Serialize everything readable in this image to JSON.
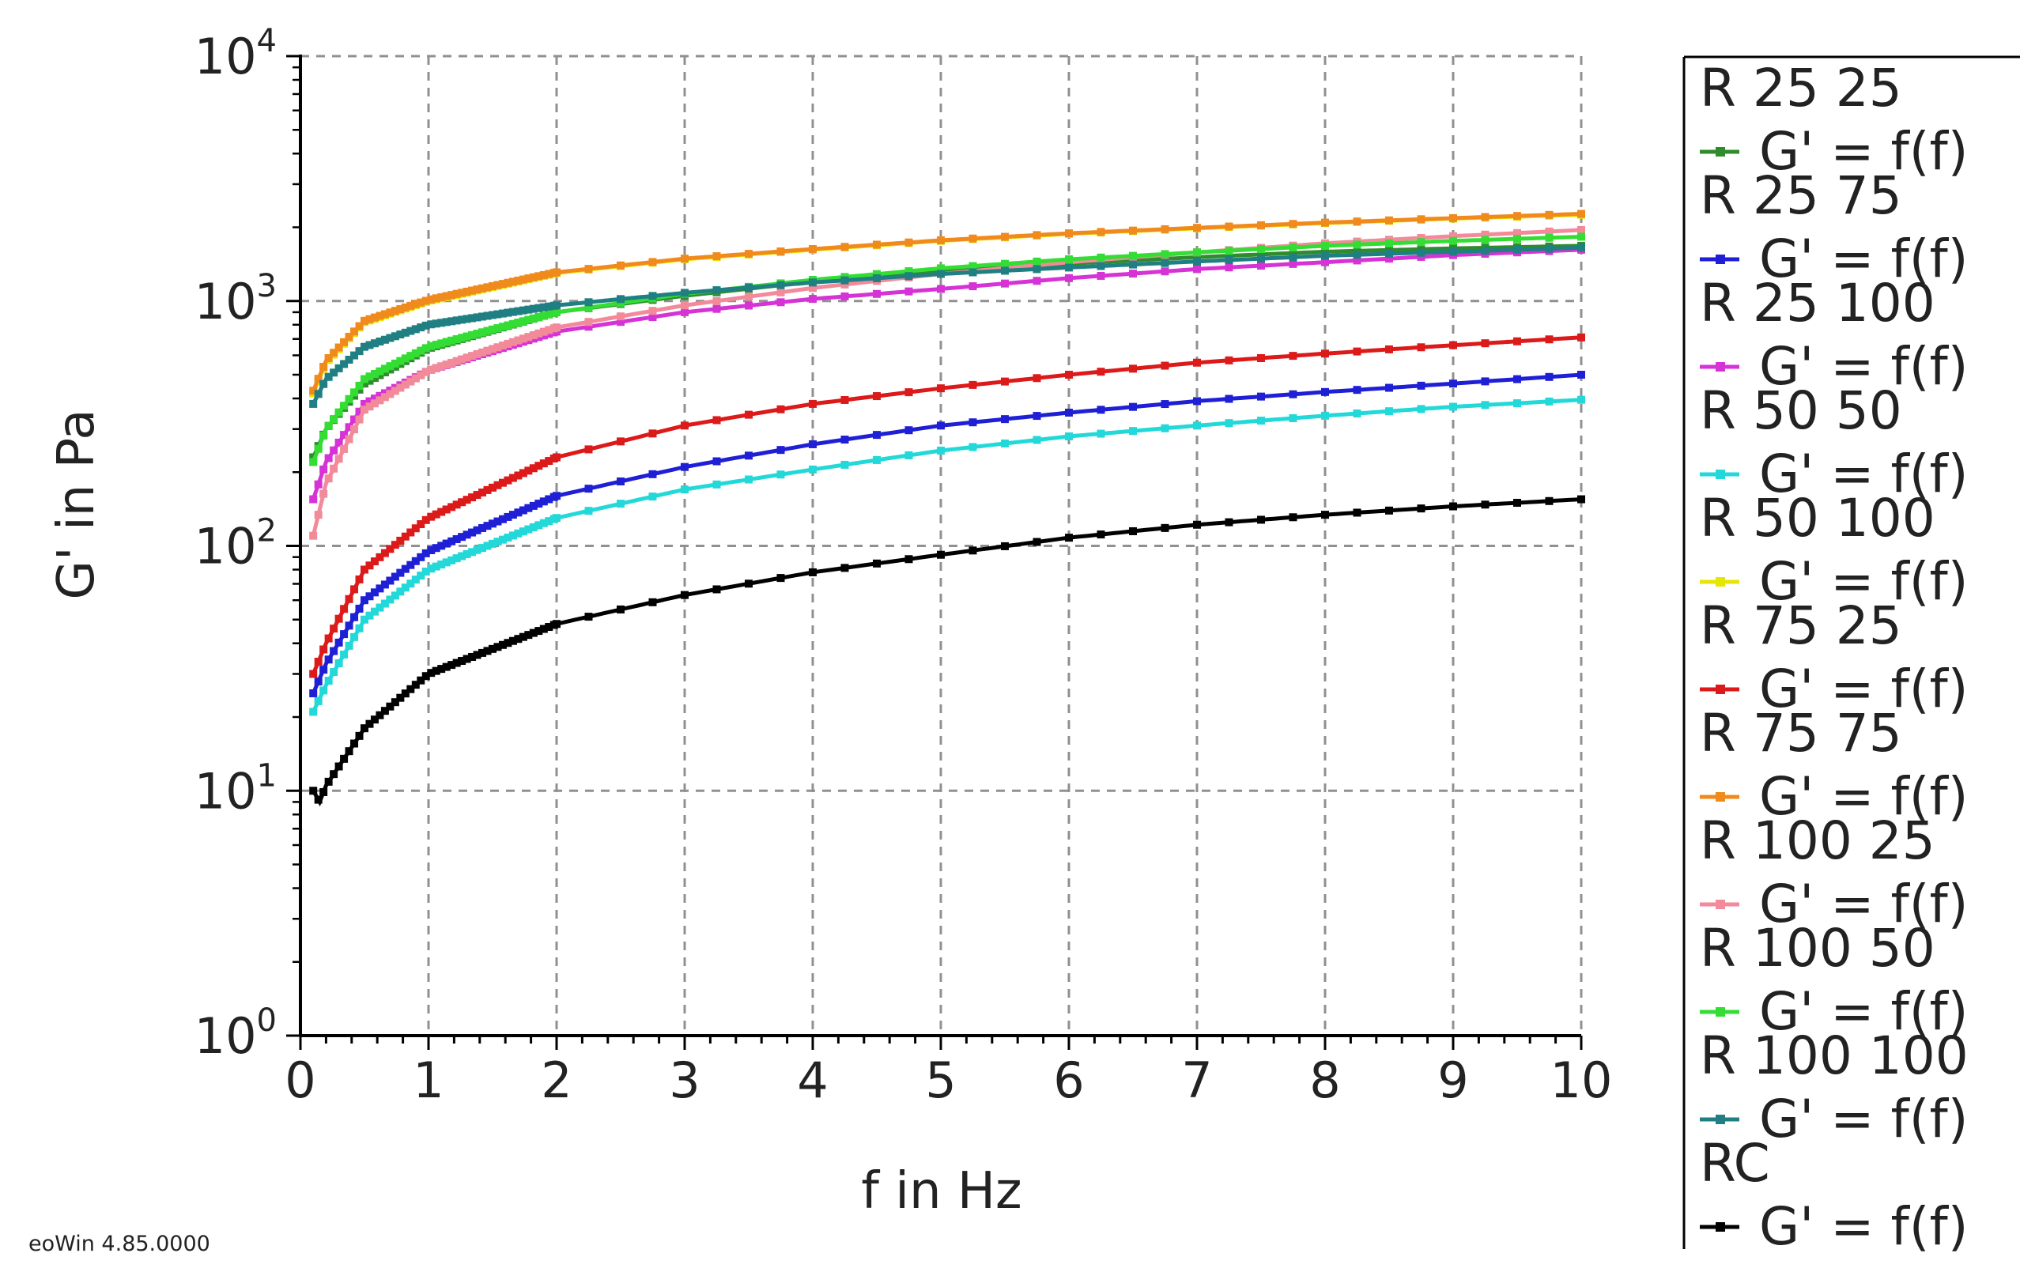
{
  "chart_data": {
    "type": "line",
    "title": "",
    "xlabel": "f in Hz",
    "ylabel": "G' in Pa",
    "xlim": [
      0,
      10
    ],
    "ylim": [
      1,
      10000
    ],
    "yscale": "log",
    "grid": true,
    "x_ticks": [
      "0",
      "1",
      "2",
      "3",
      "4",
      "5",
      "6",
      "7",
      "8",
      "9",
      "10"
    ],
    "y_ticks": [
      {
        "base": "10",
        "exp": "0"
      },
      {
        "base": "10",
        "exp": "1"
      },
      {
        "base": "10",
        "exp": "2"
      },
      {
        "base": "10",
        "exp": "3"
      },
      {
        "base": "10",
        "exp": "4"
      }
    ],
    "legend_position": "right",
    "series": [
      {
        "name": "R 25 25",
        "label": "G' = f(f)",
        "color": "#2e8b2e",
        "points": [
          [
            0.1,
            230
          ],
          [
            0.2,
            300
          ],
          [
            0.5,
            460
          ],
          [
            1,
            640
          ],
          [
            2,
            900
          ],
          [
            3,
            1050
          ],
          [
            4,
            1200
          ],
          [
            5,
            1320
          ],
          [
            6,
            1420
          ],
          [
            7,
            1510
          ],
          [
            8,
            1590
          ],
          [
            9,
            1640
          ],
          [
            10,
            1680
          ]
        ]
      },
      {
        "name": "R 25 75",
        "label": "G' = f(f)",
        "color": "#1f1fd6",
        "points": [
          [
            0.1,
            25
          ],
          [
            0.2,
            33
          ],
          [
            0.5,
            60
          ],
          [
            1,
            95
          ],
          [
            2,
            160
          ],
          [
            3,
            210
          ],
          [
            4,
            260
          ],
          [
            5,
            310
          ],
          [
            6,
            350
          ],
          [
            7,
            390
          ],
          [
            8,
            425
          ],
          [
            9,
            460
          ],
          [
            10,
            500
          ]
        ]
      },
      {
        "name": "R 25 100",
        "label": "G' = f(f)",
        "color": "#d633d6",
        "points": [
          [
            0.1,
            155
          ],
          [
            0.2,
            220
          ],
          [
            0.5,
            380
          ],
          [
            1,
            520
          ],
          [
            2,
            750
          ],
          [
            3,
            900
          ],
          [
            4,
            1020
          ],
          [
            5,
            1120
          ],
          [
            6,
            1240
          ],
          [
            7,
            1350
          ],
          [
            8,
            1440
          ],
          [
            9,
            1540
          ],
          [
            10,
            1620
          ]
        ]
      },
      {
        "name": "R 50 50",
        "label": "G' = f(f)",
        "color": "#22d8d8",
        "points": [
          [
            0.1,
            21
          ],
          [
            0.2,
            27
          ],
          [
            0.5,
            50
          ],
          [
            1,
            80
          ],
          [
            2,
            130
          ],
          [
            3,
            170
          ],
          [
            4,
            205
          ],
          [
            5,
            245
          ],
          [
            6,
            280
          ],
          [
            7,
            310
          ],
          [
            8,
            340
          ],
          [
            9,
            370
          ],
          [
            10,
            395
          ]
        ]
      },
      {
        "name": "R 50 100",
        "label": "G' = f(f)",
        "color": "#e6e600",
        "points": [
          [
            0.1,
            420
          ],
          [
            0.2,
            560
          ],
          [
            0.5,
            820
          ],
          [
            1,
            1000
          ],
          [
            2,
            1300
          ],
          [
            3,
            1480
          ],
          [
            4,
            1620
          ],
          [
            5,
            1760
          ],
          [
            6,
            1880
          ],
          [
            7,
            1980
          ],
          [
            8,
            2080
          ],
          [
            9,
            2170
          ],
          [
            10,
            2250
          ]
        ]
      },
      {
        "name": "R 75 25",
        "label": "G' = f(f)",
        "color": "#dd1a1a",
        "points": [
          [
            0.1,
            30
          ],
          [
            0.2,
            40
          ],
          [
            0.5,
            80
          ],
          [
            1,
            130
          ],
          [
            2,
            230
          ],
          [
            3,
            310
          ],
          [
            4,
            380
          ],
          [
            5,
            440
          ],
          [
            6,
            500
          ],
          [
            7,
            560
          ],
          [
            8,
            610
          ],
          [
            9,
            660
          ],
          [
            10,
            710
          ]
        ]
      },
      {
        "name": "R 75 75",
        "label": "G' = f(f)",
        "color": "#f08a1c",
        "points": [
          [
            0.1,
            430
          ],
          [
            0.2,
            570
          ],
          [
            0.5,
            830
          ],
          [
            1,
            1010
          ],
          [
            2,
            1310
          ],
          [
            3,
            1490
          ],
          [
            4,
            1630
          ],
          [
            5,
            1770
          ],
          [
            6,
            1890
          ],
          [
            7,
            1990
          ],
          [
            8,
            2090
          ],
          [
            9,
            2180
          ],
          [
            10,
            2270
          ]
        ]
      },
      {
        "name": "R 100 25",
        "label": "G' = f(f)",
        "color": "#f28a9a",
        "points": [
          [
            0.1,
            110
          ],
          [
            0.2,
            180
          ],
          [
            0.5,
            360
          ],
          [
            1,
            520
          ],
          [
            2,
            780
          ],
          [
            3,
            960
          ],
          [
            4,
            1130
          ],
          [
            5,
            1290
          ],
          [
            6,
            1440
          ],
          [
            7,
            1580
          ],
          [
            8,
            1720
          ],
          [
            9,
            1840
          ],
          [
            10,
            1950
          ]
        ]
      },
      {
        "name": "R 100 50",
        "label": "G' = f(f)",
        "color": "#33dd33",
        "points": [
          [
            0.1,
            220
          ],
          [
            0.2,
            300
          ],
          [
            0.5,
            480
          ],
          [
            1,
            650
          ],
          [
            2,
            900
          ],
          [
            3,
            1070
          ],
          [
            4,
            1220
          ],
          [
            5,
            1360
          ],
          [
            6,
            1480
          ],
          [
            7,
            1580
          ],
          [
            8,
            1680
          ],
          [
            9,
            1760
          ],
          [
            10,
            1830
          ]
        ]
      },
      {
        "name": "R 100 100",
        "label": "G' = f(f)",
        "color": "#1f7f82",
        "points": [
          [
            0.1,
            380
          ],
          [
            0.2,
            480
          ],
          [
            0.5,
            650
          ],
          [
            1,
            800
          ],
          [
            2,
            960
          ],
          [
            3,
            1080
          ],
          [
            4,
            1190
          ],
          [
            5,
            1290
          ],
          [
            6,
            1370
          ],
          [
            7,
            1450
          ],
          [
            8,
            1530
          ],
          [
            9,
            1590
          ],
          [
            10,
            1650
          ]
        ]
      },
      {
        "name": "RC",
        "label": "G' = f(f)",
        "color": "#000000",
        "points": [
          [
            0.1,
            10
          ],
          [
            0.15,
            9
          ],
          [
            0.2,
            10.5
          ],
          [
            0.5,
            18
          ],
          [
            1,
            30
          ],
          [
            2,
            48
          ],
          [
            3,
            63
          ],
          [
            4,
            78
          ],
          [
            5,
            92
          ],
          [
            6,
            108
          ],
          [
            7,
            122
          ],
          [
            8,
            134
          ],
          [
            9,
            145
          ],
          [
            10,
            155
          ]
        ]
      }
    ]
  },
  "footer": {
    "version_text": "eoWin 4.85.0000"
  }
}
